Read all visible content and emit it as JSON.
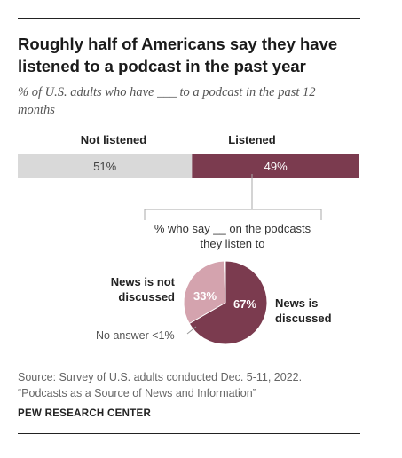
{
  "title": "Roughly half of Americans say they have listened to a podcast in the past year",
  "subtitle": "% of U.S. adults who have ___ to a podcast in the past 12 months",
  "source_line1": "Source: Survey of U.S. adults conducted Dec. 5-11, 2022.",
  "source_line2": "“Podcasts as a Source of News and Information”",
  "brand": "PEW RESEARCH CENTER",
  "colors": {
    "not_listened": "#d9d9d9",
    "listened": "#7b3b4f",
    "pie_discussed": "#7b3b4f",
    "pie_not_discussed": "#d4a3ae",
    "pie_no_answer": "#ffffff"
  },
  "chart_data": [
    {
      "type": "bar",
      "orientation": "horizontal-stacked",
      "title": "",
      "categories": [
        "Not listened",
        "Listened"
      ],
      "values": [
        51,
        49
      ],
      "value_labels": [
        "51%",
        "49%"
      ],
      "xlim": [
        0,
        100
      ]
    },
    {
      "type": "pie",
      "title": "% who say __ on the podcasts they listen to",
      "categories": [
        "News is discussed",
        "News is not discussed",
        "No answer <1%"
      ],
      "values": [
        67,
        33,
        0.5
      ],
      "value_labels": [
        "67%",
        "33%",
        ""
      ]
    }
  ]
}
